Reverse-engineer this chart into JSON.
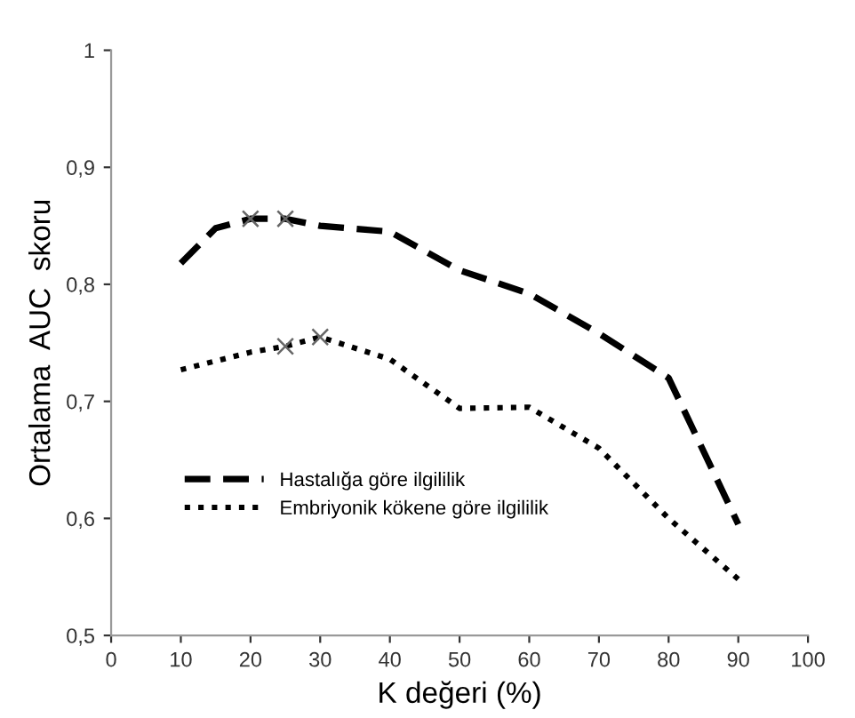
{
  "chart_data": {
    "type": "line",
    "xlabel": "K değeri (%)",
    "ylabel": "Ortalama  AUC  skoru",
    "xlim": [
      0,
      100
    ],
    "xticks": [
      0,
      10,
      20,
      30,
      40,
      50,
      60,
      70,
      80,
      90,
      100
    ],
    "ylim": [
      0.5,
      1
    ],
    "yticks": [
      {
        "value": 0.5,
        "label": "0,5"
      },
      {
        "value": 0.6,
        "label": "0,6"
      },
      {
        "value": 0.7,
        "label": "0,7"
      },
      {
        "value": 0.8,
        "label": "0,8"
      },
      {
        "value": 0.9,
        "label": "0,9"
      },
      {
        "value": 1,
        "label": "1"
      }
    ],
    "grid": false,
    "legend": "left",
    "series": [
      {
        "name": "Hastalığa göre ilgililik",
        "color": "#000000",
        "line_style": "dashed",
        "x": [
          10,
          15,
          20,
          25,
          30,
          40,
          50,
          60,
          70,
          80,
          90
        ],
        "values": [
          0.818,
          0.848,
          0.856,
          0.856,
          0.85,
          0.845,
          0.812,
          0.792,
          0.758,
          0.72,
          0.595
        ]
      },
      {
        "name": "Embriyonik kökene göre ilgililik",
        "color": "#000000",
        "line_style": "dotted",
        "x": [
          10,
          20,
          25,
          30,
          40,
          50,
          60,
          70,
          80,
          90
        ],
        "values": [
          0.727,
          0.742,
          0.747,
          0.755,
          0.736,
          0.694,
          0.695,
          0.66,
          0.6,
          0.548
        ]
      },
      {
        "type": "scatter",
        "color": "#666666",
        "marker": "cross",
        "x": [
          20,
          25
        ],
        "values": [
          0.856,
          0.856
        ]
      },
      {
        "type": "scatter",
        "color": "#666666",
        "marker": "cross",
        "x": [
          25,
          30
        ],
        "values": [
          0.747,
          0.755
        ]
      }
    ]
  }
}
